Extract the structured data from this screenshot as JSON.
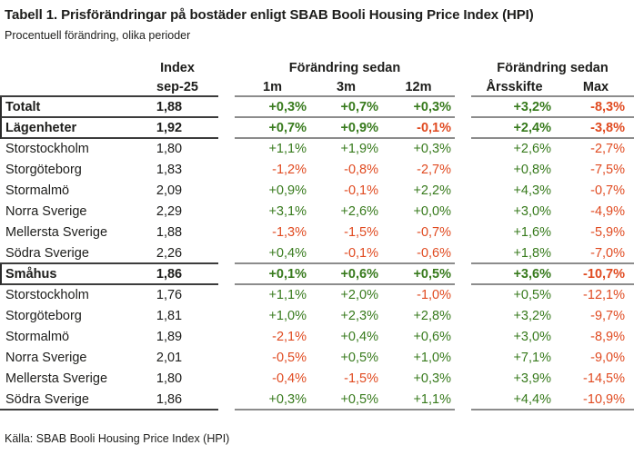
{
  "title": "Tabell 1. Prisförändringar på bostäder enligt SBAB Booli Housing Price Index (HPI)",
  "subtitle": "Procentuell förändring, olika perioder",
  "source": "Källa: SBAB Booli Housing Price Index (HPI)",
  "colors": {
    "positive": "#377a1c",
    "negative": "#e04a20",
    "text": "#1d1d1b"
  },
  "chart_data": {
    "type": "table",
    "title": "Tabell 1. Prisförändringar på bostäder enligt SBAB Booli Housing Price Index (HPI)",
    "subtitle": "Procentuell förändring, olika perioder",
    "header": {
      "index_label": "Index",
      "index_sublabel": "sep-25",
      "change_group_1": "Förändring sedan",
      "change_group_1_cols": [
        "1m",
        "3m",
        "12m"
      ],
      "change_group_2": "Förändring sedan",
      "change_group_2_cols": [
        "Årsskifte",
        "Max"
      ]
    },
    "rows": [
      {
        "label": "Totalt",
        "bold": true,
        "index": "1,88",
        "m1": "+0,3%",
        "m3": "+0,7%",
        "m12": "+0,3%",
        "ytd": "+3,2%",
        "max": "-8,3%"
      },
      {
        "label": "Lägenheter",
        "bold": true,
        "index": "1,92",
        "m1": "+0,7%",
        "m3": "+0,9%",
        "m12": "-0,1%",
        "ytd": "+2,4%",
        "max": "-3,8%"
      },
      {
        "label": "Storstockholm",
        "bold": false,
        "index": "1,80",
        "m1": "+1,1%",
        "m3": "+1,9%",
        "m12": "+0,3%",
        "ytd": "+2,6%",
        "max": "-2,7%"
      },
      {
        "label": "Storgöteborg",
        "bold": false,
        "index": "1,83",
        "m1": "-1,2%",
        "m3": "-0,8%",
        "m12": "-2,7%",
        "ytd": "+0,8%",
        "max": "-7,5%"
      },
      {
        "label": "Stormalmö",
        "bold": false,
        "index": "2,09",
        "m1": "+0,9%",
        "m3": "-0,1%",
        "m12": "+2,2%",
        "ytd": "+4,3%",
        "max": "-0,7%"
      },
      {
        "label": "Norra Sverige",
        "bold": false,
        "index": "2,29",
        "m1": "+3,1%",
        "m3": "+2,6%",
        "m12": "+0,0%",
        "ytd": "+3,0%",
        "max": "-4,9%"
      },
      {
        "label": "Mellersta Sverige",
        "bold": false,
        "index": "1,88",
        "m1": "-1,3%",
        "m3": "-1,5%",
        "m12": "-0,7%",
        "ytd": "+1,6%",
        "max": "-5,9%"
      },
      {
        "label": "Södra Sverige",
        "bold": false,
        "index": "2,26",
        "m1": "+0,4%",
        "m3": "-0,1%",
        "m12": "-0,6%",
        "ytd": "+1,8%",
        "max": "-7,0%"
      },
      {
        "label": "Småhus",
        "bold": true,
        "index": "1,86",
        "m1": "+0,1%",
        "m3": "+0,6%",
        "m12": "+0,5%",
        "ytd": "+3,6%",
        "max": "-10,7%"
      },
      {
        "label": "Storstockholm",
        "bold": false,
        "index": "1,76",
        "m1": "+1,1%",
        "m3": "+2,0%",
        "m12": "-1,0%",
        "ytd": "+0,5%",
        "max": "-12,1%"
      },
      {
        "label": "Storgöteborg",
        "bold": false,
        "index": "1,81",
        "m1": "+1,0%",
        "m3": "+2,3%",
        "m12": "+2,8%",
        "ytd": "+3,2%",
        "max": "-9,7%"
      },
      {
        "label": "Stormalmö",
        "bold": false,
        "index": "1,89",
        "m1": "-2,1%",
        "m3": "+0,4%",
        "m12": "+0,6%",
        "ytd": "+3,0%",
        "max": "-8,9%"
      },
      {
        "label": "Norra Sverige",
        "bold": false,
        "index": "2,01",
        "m1": "-0,5%",
        "m3": "+0,5%",
        "m12": "+1,0%",
        "ytd": "+7,1%",
        "max": "-9,0%"
      },
      {
        "label": "Mellersta Sverige",
        "bold": false,
        "index": "1,80",
        "m1": "-0,4%",
        "m3": "-1,5%",
        "m12": "+0,3%",
        "ytd": "+3,9%",
        "max": "-14,5%"
      },
      {
        "label": "Södra Sverige",
        "bold": false,
        "index": "1,86",
        "m1": "+0,3%",
        "m3": "+0,5%",
        "m12": "+1,1%",
        "ytd": "+4,4%",
        "max": "-10,9%"
      }
    ]
  }
}
